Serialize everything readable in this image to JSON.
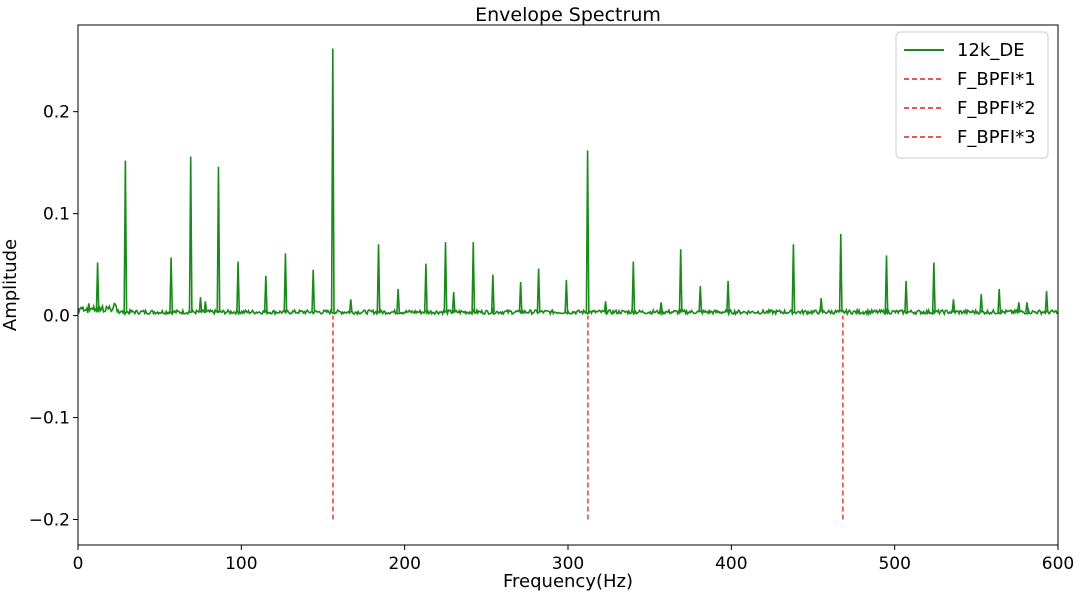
{
  "chart_data": {
    "type": "line",
    "title": "Envelope Spectrum",
    "xlabel": "Frequency(Hz)",
    "ylabel": "Amplitude",
    "xlim": [
      0,
      600
    ],
    "ylim": [
      -0.225,
      0.285
    ],
    "xticks": [
      0,
      100,
      200,
      300,
      400,
      500,
      600
    ],
    "xtick_labels": [
      "0",
      "100",
      "200",
      "300",
      "400",
      "500",
      "600"
    ],
    "yticks": [
      -0.2,
      -0.1,
      0.0,
      0.1,
      0.2
    ],
    "ytick_labels": [
      "−0.2",
      "−0.1",
      "0.0",
      "0.1",
      "0.2"
    ],
    "grid": false,
    "legend_position": "top-right",
    "series": [
      {
        "name": "12k_DE",
        "color": "#1a8a1a",
        "style": "solid",
        "peaks": [
          {
            "x": 12,
            "y": 0.052
          },
          {
            "x": 29,
            "y": 0.152
          },
          {
            "x": 57,
            "y": 0.057
          },
          {
            "x": 69,
            "y": 0.156
          },
          {
            "x": 75,
            "y": 0.018
          },
          {
            "x": 78,
            "y": 0.014
          },
          {
            "x": 86,
            "y": 0.146
          },
          {
            "x": 98,
            "y": 0.053
          },
          {
            "x": 115,
            "y": 0.039
          },
          {
            "x": 127,
            "y": 0.061
          },
          {
            "x": 144,
            "y": 0.045
          },
          {
            "x": 156,
            "y": 0.262
          },
          {
            "x": 167,
            "y": 0.016
          },
          {
            "x": 184,
            "y": 0.07
          },
          {
            "x": 196,
            "y": 0.026
          },
          {
            "x": 213,
            "y": 0.051
          },
          {
            "x": 225,
            "y": 0.072
          },
          {
            "x": 230,
            "y": 0.023
          },
          {
            "x": 242,
            "y": 0.072
          },
          {
            "x": 254,
            "y": 0.04
          },
          {
            "x": 271,
            "y": 0.033
          },
          {
            "x": 282,
            "y": 0.046
          },
          {
            "x": 299,
            "y": 0.035
          },
          {
            "x": 312,
            "y": 0.162
          },
          {
            "x": 323,
            "y": 0.014
          },
          {
            "x": 340,
            "y": 0.053
          },
          {
            "x": 357,
            "y": 0.013
          },
          {
            "x": 369,
            "y": 0.065
          },
          {
            "x": 381,
            "y": 0.029
          },
          {
            "x": 398,
            "y": 0.034
          },
          {
            "x": 438,
            "y": 0.07
          },
          {
            "x": 455,
            "y": 0.017
          },
          {
            "x": 467,
            "y": 0.08
          },
          {
            "x": 495,
            "y": 0.059
          },
          {
            "x": 507,
            "y": 0.034
          },
          {
            "x": 524,
            "y": 0.052
          },
          {
            "x": 536,
            "y": 0.016
          },
          {
            "x": 553,
            "y": 0.021
          },
          {
            "x": 564,
            "y": 0.026
          },
          {
            "x": 576,
            "y": 0.013
          },
          {
            "x": 581,
            "y": 0.013
          },
          {
            "x": 593,
            "y": 0.024
          }
        ]
      },
      {
        "name": "F_BPFI*1",
        "color": "#e02020",
        "style": "dashed",
        "x": 156.1,
        "y": [
          -0.2,
          0.0
        ]
      },
      {
        "name": "F_BPFI*2",
        "color": "#e02020",
        "style": "dashed",
        "x": 312.2,
        "y": [
          -0.2,
          0.0
        ]
      },
      {
        "name": "F_BPFI*3",
        "color": "#e02020",
        "style": "dashed",
        "x": 468.3,
        "y": [
          -0.2,
          0.0
        ]
      }
    ]
  }
}
